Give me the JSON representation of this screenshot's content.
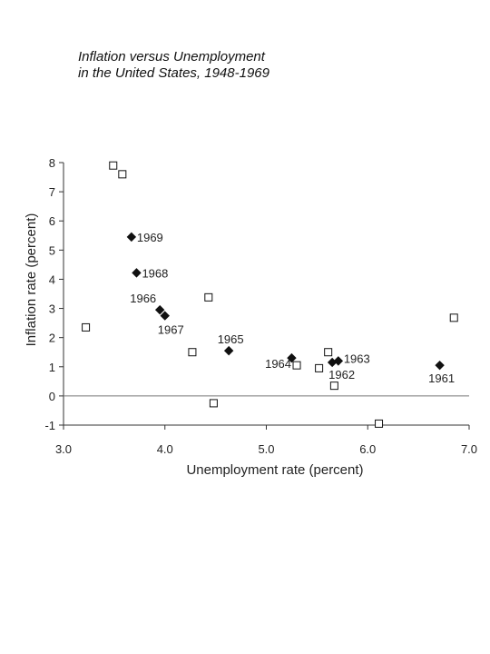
{
  "chart_data": {
    "type": "scatter",
    "title_lines": [
      "Inflation versus Unemployment",
      "in the United States, 1948-1969"
    ],
    "xlabel": "Unemployment rate (percent)",
    "ylabel": "Inflation rate (percent)",
    "xlim": [
      3.0,
      7.0
    ],
    "ylim": [
      -1,
      8
    ],
    "x_ticks": [
      "3.0",
      "4.0",
      "5.0",
      "6.0",
      "7.0"
    ],
    "y_ticks": [
      "-1",
      "0",
      "1",
      "2",
      "3",
      "4",
      "5",
      "6",
      "7",
      "8"
    ],
    "zero_line": true,
    "grid": false,
    "series": [
      {
        "marker": "filled-diamond",
        "color": "#111111",
        "points": [
          {
            "x": 3.67,
            "y": 5.45,
            "label": "1969"
          },
          {
            "x": 3.72,
            "y": 4.22,
            "label": "1968"
          },
          {
            "x": 3.95,
            "y": 2.95,
            "label": "1966"
          },
          {
            "x": 4.0,
            "y": 2.75,
            "label": "1967"
          },
          {
            "x": 4.63,
            "y": 1.55,
            "label": "1965"
          },
          {
            "x": 5.25,
            "y": 1.3,
            "label": ""
          },
          {
            "x": 5.65,
            "y": 1.15,
            "label": "1962"
          },
          {
            "x": 5.71,
            "y": 1.2,
            "label": "1963"
          },
          {
            "x": 6.71,
            "y": 1.05,
            "label": "1961"
          }
        ]
      },
      {
        "marker": "open-square",
        "color": "#111111",
        "points": [
          {
            "x": 3.49,
            "y": 7.9,
            "label": ""
          },
          {
            "x": 3.58,
            "y": 7.6,
            "label": ""
          },
          {
            "x": 3.22,
            "y": 2.35,
            "label": ""
          },
          {
            "x": 4.43,
            "y": 3.38,
            "label": ""
          },
          {
            "x": 4.27,
            "y": 1.5,
            "label": ""
          },
          {
            "x": 4.48,
            "y": -0.25,
            "label": ""
          },
          {
            "x": 5.3,
            "y": 1.05,
            "label": "1964"
          },
          {
            "x": 5.52,
            "y": 0.95,
            "label": ""
          },
          {
            "x": 5.61,
            "y": 1.5,
            "label": ""
          },
          {
            "x": 5.67,
            "y": 0.35,
            "label": ""
          },
          {
            "x": 6.11,
            "y": -0.95,
            "label": ""
          },
          {
            "x": 6.85,
            "y": 2.68,
            "label": ""
          }
        ]
      }
    ]
  }
}
